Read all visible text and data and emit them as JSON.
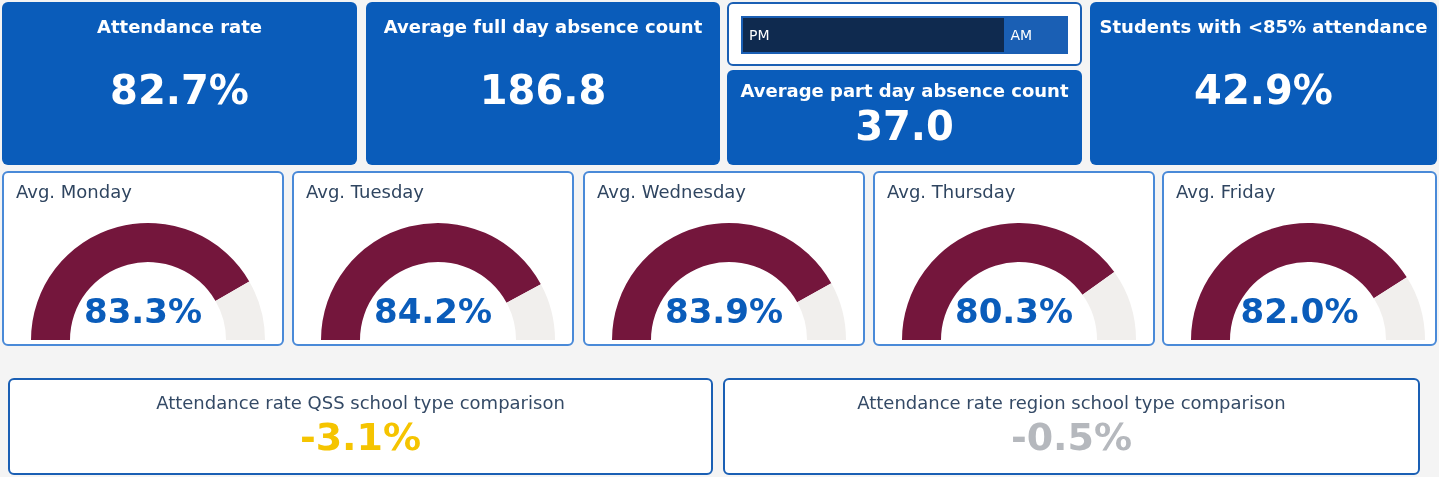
{
  "chart_data": [
    {
      "type": "other",
      "title": "Attendance rate",
      "annotations": [
        "82.7%"
      ]
    },
    {
      "type": "other",
      "title": "Average full day absence count",
      "annotations": [
        "186.8"
      ]
    },
    {
      "type": "other",
      "annotations": [
        "PM",
        "AM"
      ]
    },
    {
      "type": "other",
      "title": "Average part day absence count",
      "annotations": [
        "37.0"
      ]
    },
    {
      "type": "other",
      "title": "Students with <85% attendance",
      "annotations": [
        "42.9%"
      ]
    },
    {
      "type": "donut",
      "title": "Avg. Monday",
      "categories": [
        null,
        null
      ],
      "values": [
        83.3,
        16.7
      ],
      "colors": [
        "#74163c",
        "#f1efed"
      ],
      "value_labels": [
        "83.3%",
        null
      ]
    },
    {
      "type": "donut",
      "title": "Avg. Tuesday",
      "categories": [
        null,
        null
      ],
      "values": [
        84.2,
        15.8
      ],
      "colors": [
        "#74163c",
        "#f1efed"
      ],
      "value_labels": [
        "84.2%",
        null
      ]
    },
    {
      "type": "donut",
      "title": "Avg. Wednesday",
      "categories": [
        null,
        null
      ],
      "values": [
        83.9,
        16.1
      ],
      "colors": [
        "#74163c",
        "#f1efed"
      ],
      "value_labels": [
        "83.9%",
        null
      ]
    },
    {
      "type": "donut",
      "title": "Avg. Thursday",
      "categories": [
        null,
        null
      ],
      "values": [
        80.3,
        19.7
      ],
      "colors": [
        "#74163c",
        "#f1efed"
      ],
      "value_labels": [
        "80.3%",
        null
      ]
    },
    {
      "type": "donut",
      "title": "Avg. Friday",
      "categories": [
        null,
        null
      ],
      "values": [
        82.0,
        18.0
      ],
      "colors": [
        "#74163c",
        "#f1efed"
      ],
      "value_labels": [
        "82.0%",
        null
      ]
    },
    {
      "type": "other",
      "title": "Attendance rate QSS school type comparison",
      "annotations": [
        "-3.1%"
      ],
      "colors": [
        "#f5c400"
      ]
    },
    {
      "type": "other",
      "title": "Attendance rate region school type comparison",
      "annotations": [
        "-0.5%"
      ],
      "colors": [
        "#b5b8bd"
      ]
    }
  ]
}
